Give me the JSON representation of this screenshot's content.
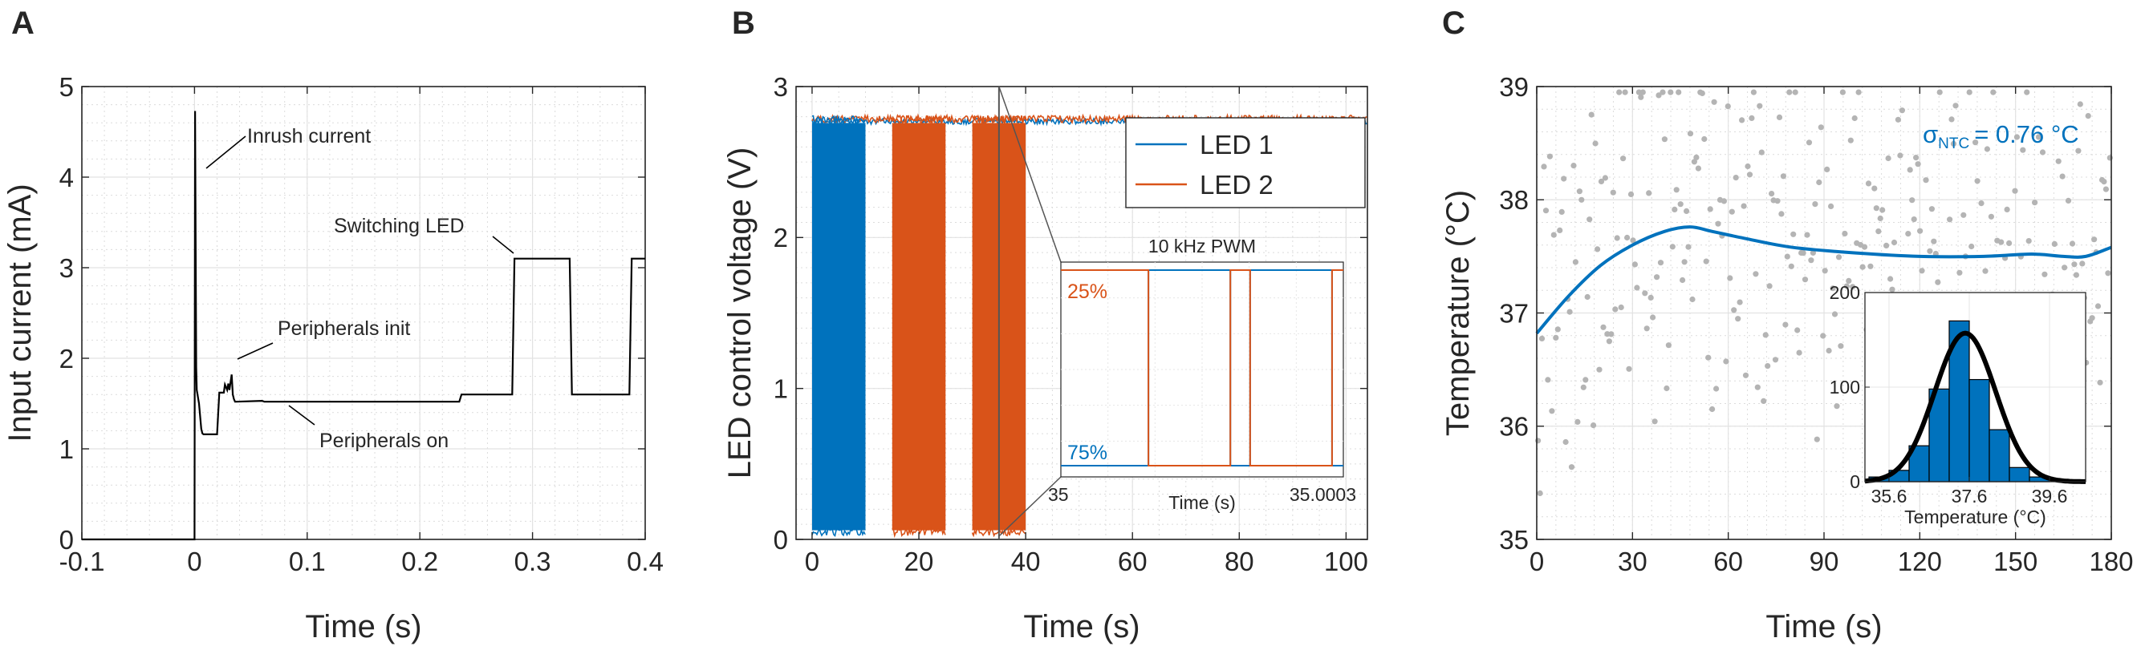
{
  "chart_data": [
    {
      "panel": "A",
      "type": "line",
      "xlabel": "Time (s)",
      "ylabel": "Input current (mA)",
      "xlim": [
        -0.1,
        0.4
      ],
      "ylim": [
        0,
        5
      ],
      "xticks": [
        -0.1,
        0,
        0.1,
        0.2,
        0.3,
        0.4
      ],
      "xtick_labels": [
        "-0.1",
        "0",
        "0.1",
        "0.2",
        "0.3",
        "0.4"
      ],
      "yticks": [
        0,
        1,
        2,
        3,
        4,
        5
      ],
      "ytick_labels": [
        "0",
        "1",
        "2",
        "3",
        "4",
        "5"
      ],
      "grid": true,
      "series": [
        {
          "name": "Input current",
          "color": "#000000",
          "x": [
            -0.1,
            -0.0005,
            0.0,
            0.0005,
            0.001,
            0.0015,
            0.002,
            0.004,
            0.006,
            0.007,
            0.008,
            0.015,
            0.02,
            0.022,
            0.026,
            0.027,
            0.029,
            0.03,
            0.031,
            0.033,
            0.034,
            0.035,
            0.036,
            0.037,
            0.06,
            0.062,
            0.1,
            0.15,
            0.2,
            0.235,
            0.237,
            0.282,
            0.284,
            0.333,
            0.335,
            0.386,
            0.388,
            0.4
          ],
          "y": [
            0,
            0,
            0,
            4.73,
            3.3,
            1.9,
            1.65,
            1.5,
            1.22,
            1.17,
            1.16,
            1.16,
            1.16,
            1.62,
            1.62,
            1.71,
            1.65,
            1.72,
            1.65,
            1.82,
            1.6,
            1.55,
            1.52,
            1.52,
            1.53,
            1.52,
            1.52,
            1.52,
            1.52,
            1.52,
            1.6,
            1.6,
            3.1,
            3.1,
            1.6,
            1.6,
            3.1,
            3.1
          ]
        }
      ],
      "annotations": [
        "Inrush current",
        "Peripherals init",
        "Peripherals on",
        "Switching LED"
      ]
    },
    {
      "panel": "B",
      "type": "line",
      "xlabel": "Time (s)",
      "ylabel": "LED control voltage (V)",
      "xlim": [
        -3,
        104
      ],
      "ylim": [
        0,
        3
      ],
      "xticks": [
        0,
        20,
        40,
        60,
        80,
        100
      ],
      "xtick_labels": [
        "0",
        "20",
        "40",
        "60",
        "80",
        "100"
      ],
      "yticks": [
        0,
        1,
        2,
        3
      ],
      "ytick_labels": [
        "0",
        "1",
        "2",
        "3"
      ],
      "grid": true,
      "legend": "top-right",
      "high_level_v": 2.78,
      "low_level_v": 0.05,
      "series": [
        {
          "name": "LED 1",
          "color": "#0072BD",
          "pwm_bursts_s": [
            [
              0,
              10
            ]
          ]
        },
        {
          "name": "LED 2",
          "color": "#D95319",
          "pwm_bursts_s": [
            [
              15,
              25
            ],
            [
              30,
              40
            ]
          ]
        }
      ],
      "inset": {
        "title": "10 kHz PWM",
        "xlabel": "Time (s)",
        "xlim": [
          35,
          35.0003
        ],
        "xtick_labels": [
          "35",
          "35.0003"
        ],
        "duty_labels": [
          "25%",
          "75%"
        ],
        "edges_fraction": [
          0.31,
          0.6,
          0.67,
          0.96
        ]
      }
    },
    {
      "panel": "C",
      "type": "scatter",
      "xlabel": "Time (s)",
      "ylabel": "Temperature (°C)",
      "xlim": [
        0,
        180
      ],
      "ylim": [
        35,
        39
      ],
      "xticks": [
        0,
        30,
        60,
        90,
        120,
        150,
        180
      ],
      "xtick_labels": [
        "0",
        "30",
        "60",
        "90",
        "120",
        "150",
        "180"
      ],
      "yticks": [
        35,
        36,
        37,
        38,
        39
      ],
      "ytick_labels": [
        "35",
        "36",
        "37",
        "38",
        "39"
      ],
      "grid": true,
      "scatter_color": "#b4b4b4",
      "fit": {
        "color": "#0072BD",
        "x": [
          0,
          10,
          20,
          30,
          40,
          48,
          55,
          65,
          80,
          100,
          120,
          140,
          155,
          165,
          172,
          180
        ],
        "y": [
          36.82,
          37.15,
          37.42,
          37.6,
          37.72,
          37.76,
          37.72,
          37.66,
          37.58,
          37.53,
          37.5,
          37.5,
          37.52,
          37.5,
          37.5,
          37.58
        ]
      },
      "sigma_label_base": "σ",
      "sigma_label_sub": "NTC",
      "sigma_label_value": "= 0.76 °C",
      "histogram": {
        "xlabel": "Temperature (°C)",
        "xlim": [
          35,
          40.5
        ],
        "ylim": [
          0,
          200
        ],
        "xticks": [
          35.6,
          37.6,
          39.6
        ],
        "xtick_labels": [
          "35.6",
          "37.6",
          "39.6"
        ],
        "yticks": [
          0,
          100,
          200
        ],
        "ytick_labels": [
          "0",
          "100",
          "200"
        ],
        "bin_edges": [
          35.1,
          35.6,
          36.1,
          36.6,
          37.1,
          37.6,
          38.1,
          38.6,
          39.1,
          39.6,
          40.1
        ],
        "counts": [
          5,
          12,
          38,
          98,
          170,
          108,
          55,
          15,
          5,
          0
        ],
        "bar_color": "#0072BD",
        "gauss_color": "#000000",
        "gauss_mean": 37.5,
        "gauss_sigma": 0.76,
        "gauss_peak": 157
      }
    }
  ],
  "panel_labels": [
    "A",
    "B",
    "C"
  ]
}
